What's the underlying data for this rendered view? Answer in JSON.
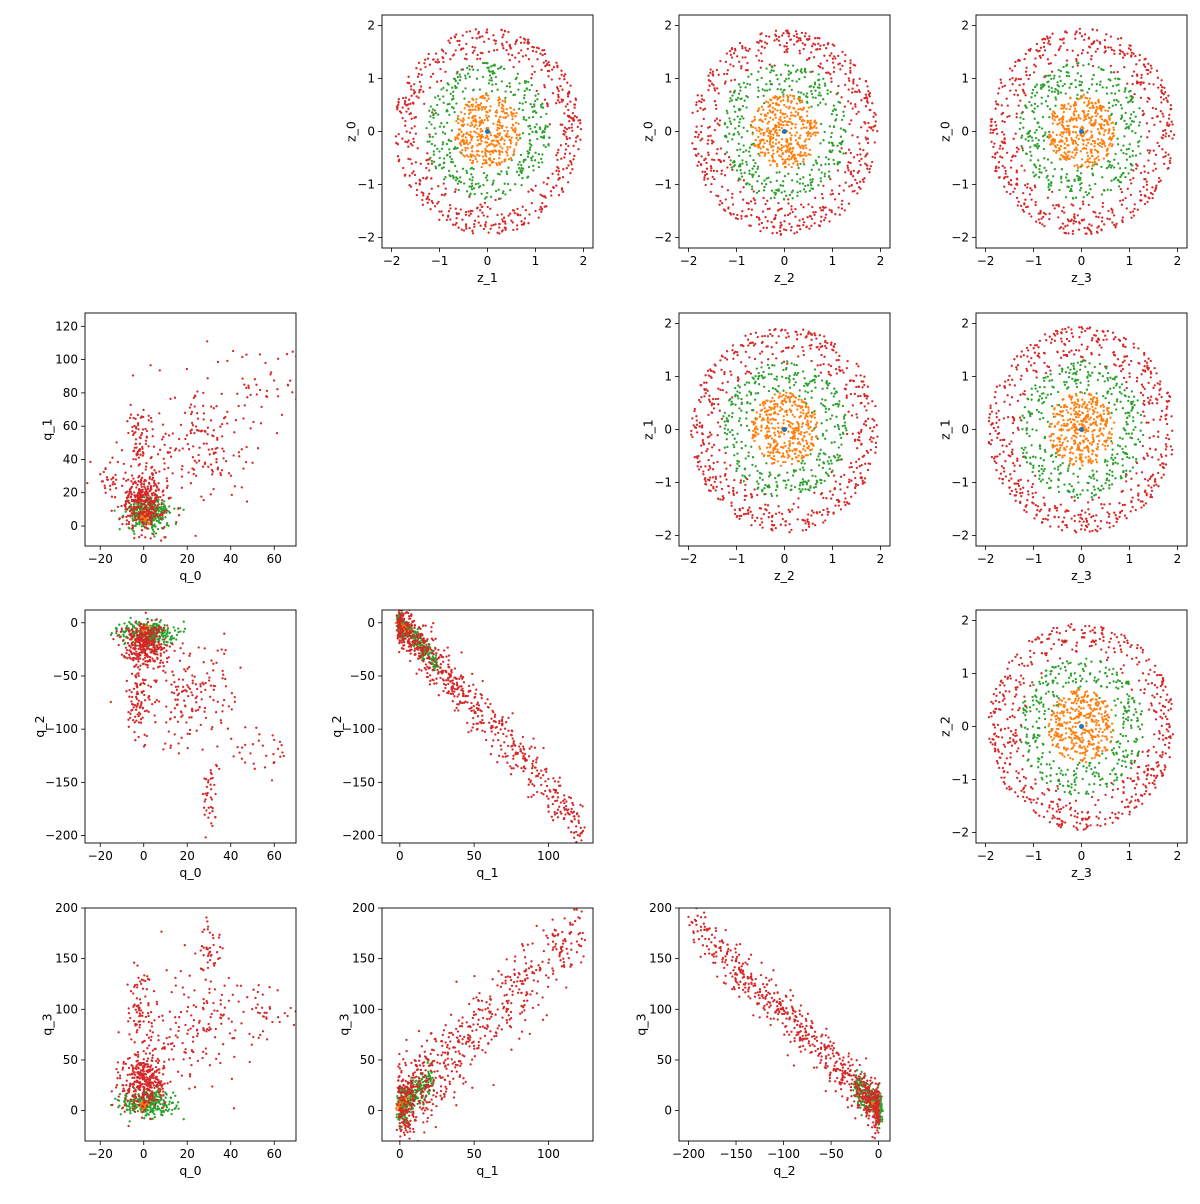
{
  "figure": {
    "layout": "4x4 pair plot; upper triangle = z-space pairs, lower triangle = q-space pairs, diagonal empty",
    "series_colors": {
      "inner": "#ff7f0e",
      "middle": "#2ca02c",
      "outer": "#d62728",
      "center": "#1f77b4"
    }
  },
  "chart_data": [
    {
      "id": "z1_z0",
      "type": "scatter",
      "row": 0,
      "col": 1,
      "xlabel": "z_1",
      "ylabel": "z_0",
      "xlim": [
        -2.2,
        2.2
      ],
      "ylim": [
        -2.2,
        2.2
      ],
      "xticks": [
        -2,
        -1,
        0,
        1,
        2
      ],
      "yticks": [
        -2,
        -1,
        0,
        1,
        2
      ],
      "xticklabels": [
        "−2",
        "−1",
        "0",
        "1",
        "2"
      ],
      "yticklabels": [
        "−2",
        "−1",
        "0",
        "1",
        "2"
      ],
      "pattern": "rings",
      "series": [
        {
          "color": "#d62728",
          "radius": [
            1.2,
            1.95
          ],
          "count": 560
        },
        {
          "color": "#2ca02c",
          "radius": [
            0.6,
            1.3
          ],
          "count": 360
        },
        {
          "color": "#ff7f0e",
          "radius": [
            0,
            0.7
          ],
          "count": 380
        }
      ]
    },
    {
      "id": "z2_z0",
      "type": "scatter",
      "row": 0,
      "col": 2,
      "xlabel": "z_2",
      "ylabel": "z_0",
      "xlim": [
        -2.2,
        2.2
      ],
      "ylim": [
        -2.2,
        2.2
      ],
      "xticks": [
        -2,
        -1,
        0,
        1,
        2
      ],
      "yticks": [
        -2,
        -1,
        0,
        1,
        2
      ],
      "xticklabels": [
        "−2",
        "−1",
        "0",
        "1",
        "2"
      ],
      "yticklabels": [
        "−2",
        "−1",
        "0",
        "1",
        "2"
      ],
      "pattern": "rings",
      "series": [
        {
          "color": "#d62728",
          "radius": [
            1.2,
            1.95
          ],
          "count": 560
        },
        {
          "color": "#2ca02c",
          "radius": [
            0.6,
            1.3
          ],
          "count": 360
        },
        {
          "color": "#ff7f0e",
          "radius": [
            0,
            0.7
          ],
          "count": 380
        }
      ]
    },
    {
      "id": "z3_z0",
      "type": "scatter",
      "row": 0,
      "col": 3,
      "xlabel": "z_3",
      "ylabel": "z_0",
      "xlim": [
        -2.2,
        2.2
      ],
      "ylim": [
        -2.2,
        2.2
      ],
      "xticks": [
        -2,
        -1,
        0,
        1,
        2
      ],
      "yticks": [
        -2,
        -1,
        0,
        1,
        2
      ],
      "xticklabels": [
        "−2",
        "−1",
        "0",
        "1",
        "2"
      ],
      "yticklabels": [
        "−2",
        "−1",
        "0",
        "1",
        "2"
      ],
      "pattern": "rings",
      "series": [
        {
          "color": "#d62728",
          "radius": [
            1.2,
            1.95
          ],
          "count": 560
        },
        {
          "color": "#2ca02c",
          "radius": [
            0.6,
            1.3
          ],
          "count": 360
        },
        {
          "color": "#ff7f0e",
          "radius": [
            0,
            0.7
          ],
          "count": 380
        }
      ]
    },
    {
      "id": "z2_z1",
      "type": "scatter",
      "row": 1,
      "col": 2,
      "xlabel": "z_2",
      "ylabel": "z_1",
      "xlim": [
        -2.2,
        2.2
      ],
      "ylim": [
        -2.2,
        2.2
      ],
      "xticks": [
        -2,
        -1,
        0,
        1,
        2
      ],
      "yticks": [
        -2,
        -1,
        0,
        1,
        2
      ],
      "xticklabels": [
        "−2",
        "−1",
        "0",
        "1",
        "2"
      ],
      "yticklabels": [
        "−2",
        "−1",
        "0",
        "1",
        "2"
      ],
      "pattern": "rings",
      "series": [
        {
          "color": "#d62728",
          "radius": [
            1.2,
            1.95
          ],
          "count": 560
        },
        {
          "color": "#2ca02c",
          "radius": [
            0.6,
            1.3
          ],
          "count": 360
        },
        {
          "color": "#ff7f0e",
          "radius": [
            0,
            0.7
          ],
          "count": 380
        }
      ]
    },
    {
      "id": "z3_z1",
      "type": "scatter",
      "row": 1,
      "col": 3,
      "xlabel": "z_3",
      "ylabel": "z_1",
      "xlim": [
        -2.2,
        2.2
      ],
      "ylim": [
        -2.2,
        2.2
      ],
      "xticks": [
        -2,
        -1,
        0,
        1,
        2
      ],
      "yticks": [
        -2,
        -1,
        0,
        1,
        2
      ],
      "xticklabels": [
        "−2",
        "−1",
        "0",
        "1",
        "2"
      ],
      "yticklabels": [
        "−2",
        "−1",
        "0",
        "1",
        "2"
      ],
      "pattern": "rings",
      "series": [
        {
          "color": "#d62728",
          "radius": [
            1.2,
            1.95
          ],
          "count": 560
        },
        {
          "color": "#2ca02c",
          "radius": [
            0.6,
            1.3
          ],
          "count": 360
        },
        {
          "color": "#ff7f0e",
          "radius": [
            0,
            0.7
          ],
          "count": 380
        }
      ]
    },
    {
      "id": "z3_z2",
      "type": "scatter",
      "row": 2,
      "col": 3,
      "xlabel": "z_3",
      "ylabel": "z_2",
      "xlim": [
        -2.2,
        2.2
      ],
      "ylim": [
        -2.2,
        2.2
      ],
      "xticks": [
        -2,
        -1,
        0,
        1,
        2
      ],
      "yticks": [
        -2,
        -1,
        0,
        1,
        2
      ],
      "xticklabels": [
        "−2",
        "−1",
        "0",
        "1",
        "2"
      ],
      "yticklabels": [
        "−2",
        "−1",
        "0",
        "1",
        "2"
      ],
      "pattern": "rings",
      "series": [
        {
          "color": "#d62728",
          "radius": [
            1.2,
            1.95
          ],
          "count": 560
        },
        {
          "color": "#2ca02c",
          "radius": [
            0.6,
            1.3
          ],
          "count": 360
        },
        {
          "color": "#ff7f0e",
          "radius": [
            0,
            0.7
          ],
          "count": 380
        }
      ]
    },
    {
      "id": "q0_q1",
      "type": "scatter",
      "row": 1,
      "col": 0,
      "xlabel": "q_0",
      "ylabel": "q_1",
      "xlim": [
        -27,
        70
      ],
      "ylim": [
        -12,
        128
      ],
      "xticks": [
        -20,
        0,
        20,
        40,
        60
      ],
      "yticks": [
        0,
        20,
        40,
        60,
        80,
        100,
        120
      ],
      "xticklabels": [
        "−20",
        "0",
        "20",
        "40",
        "60"
      ],
      "yticklabels": [
        "0",
        "20",
        "40",
        "60",
        "80",
        "100",
        "120"
      ],
      "pattern": "clusters",
      "series": [
        {
          "color": "#2ca02c",
          "clusters": [
            {
              "cx": 2,
              "cy": 8,
              "sx": 5,
              "sy": 5,
              "n": 320
            }
          ]
        },
        {
          "color": "#ff7f0e",
          "clusters": [
            {
              "cx": 0,
              "cy": 5,
              "sx": 1,
              "sy": 1.5,
              "n": 40
            }
          ]
        },
        {
          "color": "#d62728",
          "clusters": [
            {
              "cx": 0,
              "cy": 15,
              "sx": 5,
              "sy": 8,
              "n": 350
            },
            {
              "cx": -2,
              "cy": 50,
              "sx": 2.5,
              "sy": 12,
              "n": 70
            },
            {
              "cx": 25,
              "cy": 50,
              "sx": 12,
              "sy": 20,
              "n": 180
            },
            {
              "cx": 55,
              "cy": 85,
              "sx": 8,
              "sy": 12,
              "n": 40
            },
            {
              "cx": -15,
              "cy": 30,
              "sx": 4,
              "sy": 8,
              "n": 30
            }
          ]
        }
      ]
    },
    {
      "id": "q0_q2",
      "type": "scatter",
      "row": 2,
      "col": 0,
      "xlabel": "q_0",
      "ylabel": "q_2",
      "xlim": [
        -27,
        70
      ],
      "ylim": [
        -207,
        12
      ],
      "xticks": [
        -20,
        0,
        20,
        40,
        60
      ],
      "yticks": [
        -200,
        -150,
        -100,
        -50,
        0
      ],
      "xticklabels": [
        "−20",
        "0",
        "20",
        "40",
        "60"
      ],
      "yticklabels": [
        "−200",
        "−150",
        "−100",
        "−50",
        "0"
      ],
      "pattern": "clusters",
      "series": [
        {
          "color": "#2ca02c",
          "clusters": [
            {
              "cx": 2,
              "cy": -10,
              "sx": 6,
              "sy": 6,
              "n": 300
            }
          ]
        },
        {
          "color": "#ff7f0e",
          "clusters": [
            {
              "cx": 0,
              "cy": -5,
              "sx": 1,
              "sy": 2,
              "n": 30
            }
          ]
        },
        {
          "color": "#d62728",
          "clusters": [
            {
              "cx": 0,
              "cy": -20,
              "sx": 5,
              "sy": 10,
              "n": 350
            },
            {
              "cx": -3,
              "cy": -75,
              "sx": 3,
              "sy": 18,
              "n": 70
            },
            {
              "cx": 20,
              "cy": -70,
              "sx": 12,
              "sy": 25,
              "n": 180
            },
            {
              "cx": 30,
              "cy": -165,
              "sx": 2,
              "sy": 18,
              "n": 40
            },
            {
              "cx": 55,
              "cy": -115,
              "sx": 7,
              "sy": 15,
              "n": 30
            }
          ]
        }
      ]
    },
    {
      "id": "q1_q2",
      "type": "scatter",
      "row": 2,
      "col": 1,
      "xlabel": "q_1",
      "ylabel": "q_2",
      "xlim": [
        -12,
        130
      ],
      "ylim": [
        -207,
        12
      ],
      "xticks": [
        0,
        50,
        100
      ],
      "yticks": [
        -200,
        -150,
        -100,
        -50,
        0
      ],
      "xticklabels": [
        "0",
        "50",
        "100"
      ],
      "yticklabels": [
        "−200",
        "−150",
        "−100",
        "−50",
        "0"
      ],
      "pattern": "band",
      "series": [
        {
          "color": "#2ca02c",
          "band": {
            "x0": 0,
            "x1": 25,
            "n": 300,
            "f": "q12",
            "noise": 5
          }
        },
        {
          "color": "#ff7f0e",
          "band": {
            "x0": 0,
            "x1": 6,
            "n": 30,
            "f": "q12",
            "noise": 2
          }
        },
        {
          "color": "#d62728",
          "band": {
            "x0": 0,
            "x1": 124,
            "n": 700,
            "f": "q12",
            "noise": 12
          }
        }
      ]
    },
    {
      "id": "q0_q3",
      "type": "scatter",
      "row": 3,
      "col": 0,
      "xlabel": "q_0",
      "ylabel": "q_3",
      "xlim": [
        -27,
        70
      ],
      "ylim": [
        -30,
        200
      ],
      "xticks": [
        -20,
        0,
        20,
        40,
        60
      ],
      "yticks": [
        0,
        50,
        100,
        150,
        200
      ],
      "xticklabels": [
        "−20",
        "0",
        "20",
        "40",
        "60"
      ],
      "yticklabels": [
        "0",
        "50",
        "100",
        "150",
        "200"
      ],
      "pattern": "clusters",
      "series": [
        {
          "color": "#2ca02c",
          "clusters": [
            {
              "cx": 2,
              "cy": 8,
              "sx": 6,
              "sy": 7,
              "n": 300
            }
          ]
        },
        {
          "color": "#ff7f0e",
          "clusters": [
            {
              "cx": 0,
              "cy": 5,
              "sx": 1,
              "sy": 2,
              "n": 30
            }
          ]
        },
        {
          "color": "#d62728",
          "clusters": [
            {
              "cx": 0,
              "cy": 30,
              "sx": 5,
              "sy": 14,
              "n": 350
            },
            {
              "cx": -2,
              "cy": 100,
              "sx": 3,
              "sy": 18,
              "n": 60
            },
            {
              "cx": 22,
              "cy": 80,
              "sx": 14,
              "sy": 30,
              "n": 180
            },
            {
              "cx": 30,
              "cy": 160,
              "sx": 3,
              "sy": 15,
              "n": 40
            },
            {
              "cx": 55,
              "cy": 100,
              "sx": 8,
              "sy": 12,
              "n": 30
            }
          ]
        }
      ]
    },
    {
      "id": "q1_q3",
      "type": "scatter",
      "row": 3,
      "col": 1,
      "xlabel": "q_1",
      "ylabel": "q_3",
      "xlim": [
        -12,
        130
      ],
      "ylim": [
        -30,
        200
      ],
      "xticks": [
        0,
        50,
        100
      ],
      "yticks": [
        0,
        50,
        100,
        150,
        200
      ],
      "xticklabels": [
        "0",
        "50",
        "100"
      ],
      "yticklabels": [
        "0",
        "50",
        "100",
        "150",
        "200"
      ],
      "pattern": "band",
      "series": [
        {
          "color": "#2ca02c",
          "band": {
            "x0": 0,
            "x1": 22,
            "n": 300,
            "f": "q13",
            "noise": 8
          }
        },
        {
          "color": "#ff7f0e",
          "band": {
            "x0": 0,
            "x1": 6,
            "n": 30,
            "f": "q13",
            "noise": 3
          }
        },
        {
          "color": "#d62728",
          "band": {
            "x0": 0,
            "x1": 124,
            "n": 700,
            "f": "q13",
            "noise": 22
          }
        }
      ]
    },
    {
      "id": "q2_q3",
      "type": "scatter",
      "row": 3,
      "col": 2,
      "xlabel": "q_2",
      "ylabel": "q_3",
      "xlim": [
        -210,
        12
      ],
      "ylim": [
        -30,
        200
      ],
      "xticks": [
        -200,
        -150,
        -100,
        -50,
        0
      ],
      "yticks": [
        0,
        50,
        100,
        150,
        200
      ],
      "xticklabels": [
        "−200",
        "−150",
        "−100",
        "−50",
        "0"
      ],
      "yticklabels": [
        "0",
        "50",
        "100",
        "150",
        "200"
      ],
      "pattern": "band",
      "series": [
        {
          "color": "#2ca02c",
          "band": {
            "x0": -25,
            "x1": 2,
            "n": 300,
            "f": "q23",
            "noise": 7
          }
        },
        {
          "color": "#ff7f0e",
          "band": {
            "x0": -6,
            "x1": 0,
            "n": 30,
            "f": "q23",
            "noise": 3
          }
        },
        {
          "color": "#d62728",
          "band": {
            "x0": -198,
            "x1": 0,
            "n": 700,
            "f": "q23",
            "noise": 12
          }
        }
      ]
    }
  ]
}
